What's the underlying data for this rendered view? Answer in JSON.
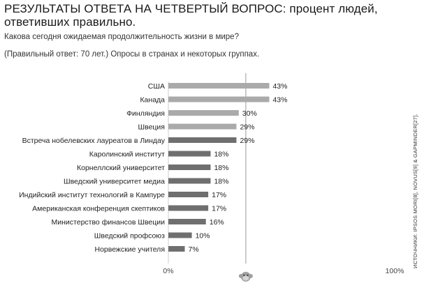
{
  "header": {
    "title": "РЕЗУЛЬТАТЫ ОТВЕТА НА ЧЕТВЕРТЫЙ ВОПРОС: процент людей, ответивших правильно.",
    "question": "Какова сегодня ожидаемая продолжительность жизни в мире?",
    "note": "(Правильный ответ: 70 лет.) Опросы в странах и некоторых группах."
  },
  "source": "ИСТОЧНИКИ: IPSOS MORI[8], NOVUS[9] & GAPMINDER[27].",
  "colors": {
    "light_bar": "#aaaaaa",
    "dark_bar": "#6f6f6f",
    "chance_line": "#9a9a9a"
  },
  "chart_data": {
    "type": "bar",
    "orientation": "horizontal",
    "categories": [
      "США",
      "Канада",
      "Финляндия",
      "Швеция",
      "Встреча нобелевских лауреатов в Линдау",
      "Каролинский институт",
      "Корнеллский университет",
      "Шведский университет медиа",
      "Индийский институт технологий в Кампуре",
      "Американская конференция скептиков",
      "Министерство финансов Швеции",
      "Шведский профсоюз",
      "Норвежские учителя"
    ],
    "values": [
      43,
      43,
      30,
      29,
      29,
      18,
      18,
      18,
      17,
      17,
      16,
      10,
      7
    ],
    "value_labels": [
      "43%",
      "43%",
      "30%",
      "29%",
      "29%",
      "18%",
      "18%",
      "18%",
      "17%",
      "17%",
      "16%",
      "10%",
      "7%"
    ],
    "shade": [
      "light",
      "light",
      "light",
      "light",
      "dark",
      "dark",
      "dark",
      "dark",
      "dark",
      "dark",
      "dark",
      "dark",
      "dark"
    ],
    "xlim": [
      0,
      100
    ],
    "x_ticks": [
      "0%",
      "100%"
    ],
    "reference_line": 33,
    "reference_icon": "chimpanzee-icon",
    "grid": false
  }
}
